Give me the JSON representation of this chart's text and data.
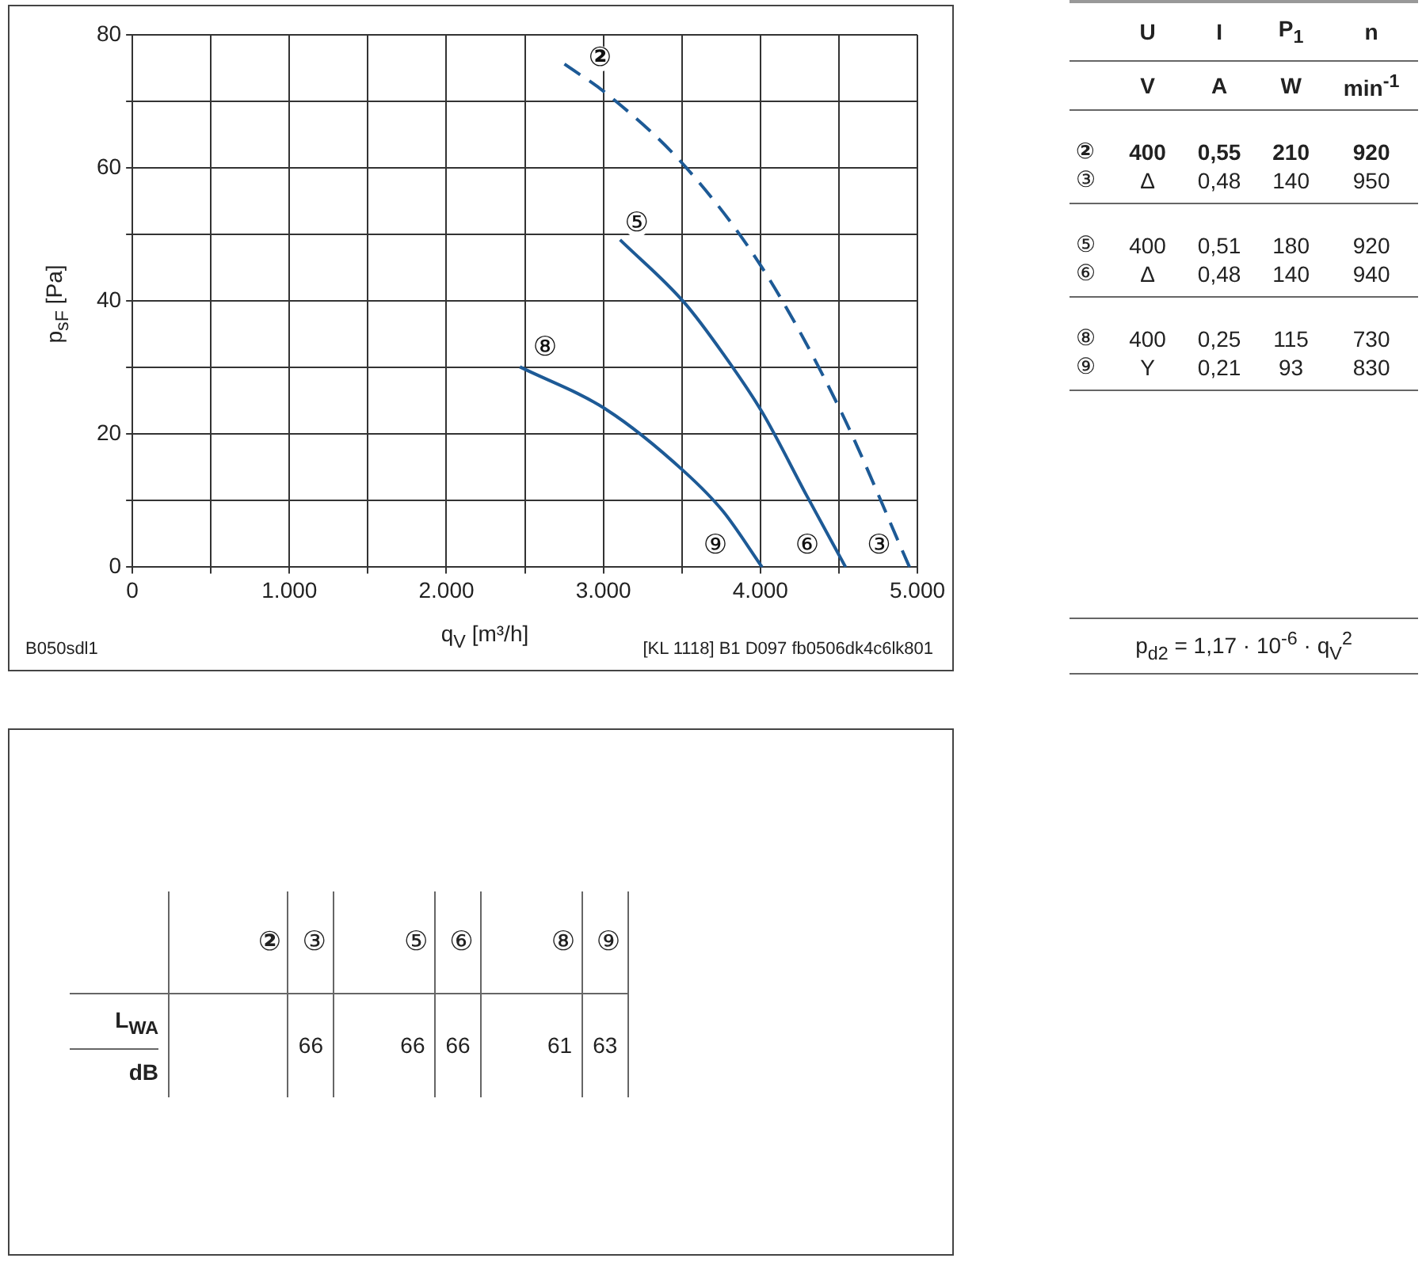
{
  "chart_data": [
    {
      "type": "line",
      "xlabel": "q$_{V}$ [m³/h]",
      "ylabel": "p$_{sF}$ [Pa]",
      "xlim": [
        0,
        5000
      ],
      "ylim": [
        0,
        80
      ],
      "xticks": [
        0,
        {
          "value": 500,
          "label": null
        },
        {
          "value": 1000,
          "label": "1.000"
        },
        {
          "value": 1500,
          "label": null
        },
        {
          "value": 2000,
          "label": "2.000"
        },
        {
          "value": 2500,
          "label": null
        },
        {
          "value": 3000,
          "label": "3.000"
        },
        {
          "value": 3500,
          "label": null
        },
        {
          "value": 4000,
          "label": "4.000"
        },
        {
          "value": 4500,
          "label": null
        },
        {
          "value": 5000,
          "label": "5.000"
        }
      ],
      "yticks": [
        0,
        {
          "value": 10,
          "label": null
        },
        20,
        {
          "value": 30,
          "label": null
        },
        40,
        {
          "value": 50,
          "label": null
        },
        60,
        {
          "value": 70,
          "label": null
        },
        80
      ],
      "grid": true,
      "legend": false,
      "marker": "none",
      "series": [
        {
          "color": "#1d5a96",
          "line_style": "dashed",
          "x": [
            2752,
            3018,
            3514,
            4011,
            4507,
            4950
          ],
          "values": [
            75.6,
            71.2,
            60.4,
            45.0,
            23.7,
            0
          ]
        },
        {
          "color": "#1d5a96",
          "line_style": "solid",
          "x": [
            3106,
            3514,
            3762,
            4011,
            4294,
            4543
          ],
          "values": [
            49.2,
            39.8,
            32.1,
            23.3,
            10.8,
            0
          ]
        },
        {
          "color": "#1d5a96",
          "line_style": "solid",
          "x": [
            2468,
            3018,
            3514,
            3762,
            4011
          ],
          "values": [
            30.1,
            23.7,
            14.4,
            8.4,
            0
          ]
        }
      ],
      "annotations": [
        {
          "text": "②",
          "x": 2979,
          "y": 76.4
        },
        {
          "text": "⑤",
          "x": 3213,
          "y": 51.5
        },
        {
          "text": "⑧",
          "x": 2628,
          "y": 32.9
        },
        {
          "text": "⑨",
          "x": 3713,
          "y": 3.1
        },
        {
          "text": "⑥",
          "x": 4298,
          "y": 3.1
        },
        {
          "text": "③",
          "x": 4755,
          "y": 3.1
        },
        "B050sdl1",
        "[KL 1118] B1 D097 fb0506dk4c6lk801"
      ]
    },
    {
      "type": "other",
      "categories": [
        "U",
        "I",
        "P$_{1}$",
        "n"
      ],
      "y_categories": [
        null,
        "②",
        "③",
        "⑤",
        "⑥",
        "⑧",
        "⑨"
      ],
      "cell_labels": [
        [
          "V",
          "A",
          "W",
          "min$^{-1}$"
        ],
        [
          "400",
          "0,55",
          "210",
          "920"
        ],
        [
          "Δ",
          "0,48",
          "140",
          "950"
        ],
        [
          "400",
          "0,51",
          "180",
          "920"
        ],
        [
          "Δ",
          "0,48",
          "140",
          "940"
        ],
        [
          "400",
          "0,25",
          "115",
          "730"
        ],
        [
          "Y",
          "0,21",
          "93",
          "830"
        ]
      ],
      "annotations": [
        "p$_{d2}$ = 1,17 · 10$^{-6}$ · q$_{V}$$^{2}$"
      ]
    },
    {
      "type": "other",
      "categories": [
        "②",
        "③",
        "⑤",
        "⑥",
        "⑧",
        "⑨"
      ],
      "y_categories": [
        "L$_{WA}$"
      ],
      "ylabel": "dB",
      "cell_labels": [
        [
          null,
          "66",
          "66",
          "66",
          "61",
          "63"
        ]
      ]
    }
  ]
}
